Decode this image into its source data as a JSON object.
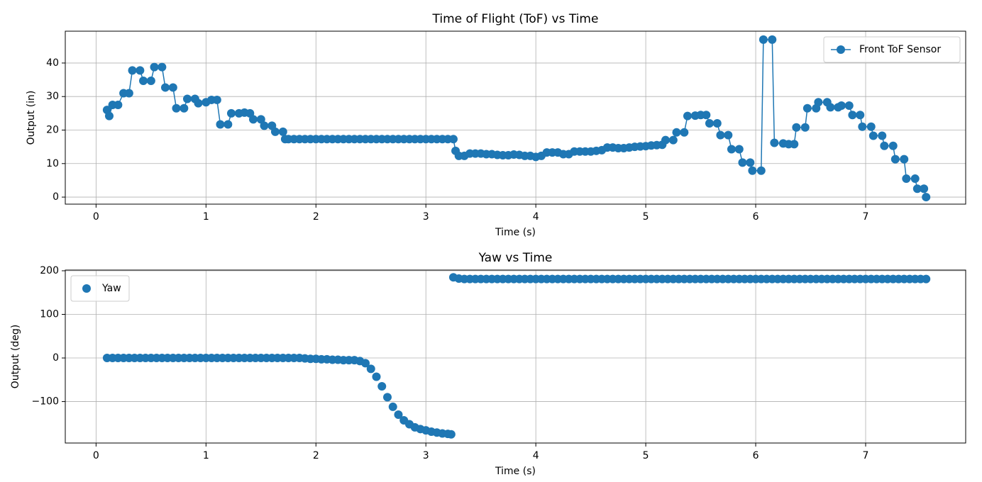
{
  "chart_data": [
    {
      "type": "line",
      "title": "Time of Flight (ToF) vs Time",
      "xlabel": "Time (s)",
      "ylabel": "Output (in)",
      "x": [
        0.1,
        0.12,
        0.15,
        0.2,
        0.25,
        0.3,
        0.33,
        0.4,
        0.43,
        0.5,
        0.53,
        0.6,
        0.63,
        0.7,
        0.73,
        0.8,
        0.83,
        0.9,
        0.93,
        1.0,
        1.05,
        1.1,
        1.13,
        1.2,
        1.23,
        1.3,
        1.35,
        1.4,
        1.43,
        1.5,
        1.53,
        1.6,
        1.63,
        1.7,
        1.72,
        1.75,
        1.8,
        1.85,
        1.9,
        1.95,
        2.0,
        2.05,
        2.1,
        2.15,
        2.2,
        2.25,
        2.3,
        2.35,
        2.4,
        2.45,
        2.5,
        2.55,
        2.6,
        2.65,
        2.7,
        2.75,
        2.8,
        2.85,
        2.9,
        2.95,
        3.0,
        3.05,
        3.1,
        3.15,
        3.2,
        3.25,
        3.27,
        3.3,
        3.35,
        3.4,
        3.45,
        3.5,
        3.55,
        3.6,
        3.65,
        3.7,
        3.75,
        3.8,
        3.85,
        3.9,
        3.95,
        4.0,
        4.05,
        4.1,
        4.15,
        4.2,
        4.25,
        4.3,
        4.35,
        4.4,
        4.45,
        4.5,
        4.55,
        4.6,
        4.65,
        4.7,
        4.75,
        4.8,
        4.85,
        4.9,
        4.95,
        5.0,
        5.05,
        5.1,
        5.15,
        5.18,
        5.25,
        5.28,
        5.35,
        5.38,
        5.45,
        5.5,
        5.55,
        5.58,
        5.65,
        5.68,
        5.75,
        5.78,
        5.85,
        5.88,
        5.95,
        5.97,
        6.05,
        6.07,
        6.15,
        6.17,
        6.25,
        6.3,
        6.35,
        6.37,
        6.45,
        6.47,
        6.55,
        6.57,
        6.65,
        6.68,
        6.75,
        6.78,
        6.85,
        6.88,
        6.95,
        6.97,
        7.05,
        7.07,
        7.15,
        7.17,
        7.25,
        7.27,
        7.35,
        7.37,
        7.45,
        7.47,
        7.53,
        7.55
      ],
      "series": [
        {
          "name": "Front ToF Sensor",
          "color": "#1f77b4",
          "values": [
            26,
            24.2,
            27.5,
            27.5,
            31,
            31,
            37.8,
            37.8,
            34.7,
            34.7,
            38.8,
            38.8,
            32.7,
            32.7,
            26.5,
            26.5,
            29.3,
            29.3,
            28,
            28.3,
            29,
            29,
            21.7,
            21.7,
            25,
            25,
            25.2,
            25,
            23.2,
            23.2,
            21.3,
            21.3,
            19.5,
            19.5,
            17.3,
            17.3,
            17.3,
            17.3,
            17.3,
            17.3,
            17.3,
            17.3,
            17.3,
            17.3,
            17.3,
            17.3,
            17.3,
            17.3,
            17.3,
            17.3,
            17.3,
            17.3,
            17.3,
            17.3,
            17.3,
            17.3,
            17.3,
            17.3,
            17.3,
            17.3,
            17.3,
            17.3,
            17.3,
            17.3,
            17.3,
            17.3,
            13.8,
            12.3,
            12.3,
            13,
            13,
            13,
            12.8,
            12.8,
            12.6,
            12.5,
            12.5,
            12.7,
            12.6,
            12.3,
            12.3,
            12,
            12.3,
            13.3,
            13.3,
            13.3,
            12.8,
            12.8,
            13.6,
            13.6,
            13.6,
            13.6,
            13.8,
            14,
            14.8,
            14.8,
            14.6,
            14.6,
            14.8,
            15,
            15.1,
            15.2,
            15.4,
            15.5,
            15.6,
            17,
            17,
            19.3,
            19.3,
            24.2,
            24.3,
            24.5,
            24.5,
            22,
            22,
            18.5,
            18.5,
            14.3,
            14.3,
            10.3,
            10.3,
            7.9,
            7.9,
            47,
            47,
            16.2,
            16,
            15.8,
            15.8,
            20.8,
            20.8,
            26.5,
            26.5,
            28.3,
            28.3,
            26.8,
            26.8,
            27.3,
            27.3,
            24.5,
            24.5,
            21,
            21,
            18.3,
            18.3,
            15.3,
            15.3,
            11.3,
            11.3,
            5.5,
            5.5,
            2.5,
            2.5,
            0
          ]
        }
      ],
      "xlim": [
        -0.28,
        7.91
      ],
      "xticks": [
        0,
        1,
        2,
        3,
        4,
        5,
        6,
        7
      ],
      "ylim": [
        -2.1,
        49.5
      ],
      "yticks": [
        0,
        10,
        20,
        30,
        40
      ],
      "grid": true,
      "legend": "upper right"
    },
    {
      "type": "scatter",
      "title": "Yaw vs Time",
      "xlabel": "Time (s)",
      "ylabel": "Output (deg)",
      "x": [
        0.1,
        0.15,
        0.2,
        0.25,
        0.3,
        0.35,
        0.4,
        0.45,
        0.5,
        0.55,
        0.6,
        0.65,
        0.7,
        0.75,
        0.8,
        0.85,
        0.9,
        0.95,
        1.0,
        1.05,
        1.1,
        1.15,
        1.2,
        1.25,
        1.3,
        1.35,
        1.4,
        1.45,
        1.5,
        1.55,
        1.6,
        1.65,
        1.7,
        1.75,
        1.8,
        1.85,
        1.9,
        1.95,
        2.0,
        2.05,
        2.1,
        2.15,
        2.2,
        2.25,
        2.3,
        2.35,
        2.4,
        2.45,
        2.5,
        2.55,
        2.6,
        2.65,
        2.7,
        2.75,
        2.8,
        2.85,
        2.9,
        2.95,
        3.0,
        3.05,
        3.1,
        3.15,
        3.2,
        3.23,
        3.25,
        3.3,
        3.35,
        3.4,
        3.45,
        3.5,
        3.55,
        3.6,
        3.65,
        3.7,
        3.75,
        3.8,
        3.85,
        3.9,
        3.95,
        4.0,
        4.05,
        4.1,
        4.15,
        4.2,
        4.25,
        4.3,
        4.35,
        4.4,
        4.45,
        4.5,
        4.55,
        4.6,
        4.65,
        4.7,
        4.75,
        4.8,
        4.85,
        4.9,
        4.95,
        5.0,
        5.05,
        5.1,
        5.15,
        5.2,
        5.25,
        5.3,
        5.35,
        5.4,
        5.45,
        5.5,
        5.55,
        5.6,
        5.65,
        5.7,
        5.75,
        5.8,
        5.85,
        5.9,
        5.95,
        6.0,
        6.05,
        6.1,
        6.15,
        6.2,
        6.25,
        6.3,
        6.35,
        6.4,
        6.45,
        6.5,
        6.55,
        6.6,
        6.65,
        6.7,
        6.75,
        6.8,
        6.85,
        6.9,
        6.95,
        7.0,
        7.05,
        7.1,
        7.15,
        7.2,
        7.25,
        7.3,
        7.35,
        7.4,
        7.45,
        7.5,
        7.55
      ],
      "series": [
        {
          "name": "Yaw",
          "color": "#1f77b4",
          "values": [
            0,
            0,
            0,
            0,
            0,
            0,
            0,
            0,
            0,
            0,
            0,
            0,
            0,
            0,
            0,
            0,
            0,
            0,
            0,
            0,
            0,
            0,
            0,
            0,
            0,
            0,
            0,
            0,
            0,
            0,
            0,
            0,
            0,
            0,
            0,
            0,
            -1,
            -2,
            -2,
            -3,
            -3,
            -4,
            -4,
            -5,
            -5,
            -5,
            -7,
            -12,
            -25,
            -43,
            -65,
            -90,
            -112,
            -130,
            -143,
            -152,
            -159,
            -163,
            -166,
            -169,
            -171,
            -173,
            -174,
            -175,
            185,
            182,
            181,
            181,
            181,
            181,
            181,
            181,
            181,
            181,
            181,
            181,
            181,
            181,
            181,
            181,
            181,
            181,
            181,
            181,
            181,
            181,
            181,
            181,
            181,
            181,
            181,
            181,
            181,
            181,
            181,
            181,
            181,
            181,
            181,
            181,
            181,
            181,
            181,
            181,
            181,
            181,
            181,
            181,
            181,
            181,
            181,
            181,
            181,
            181,
            181,
            181,
            181,
            181,
            181,
            181,
            181,
            181,
            181,
            181,
            181,
            181,
            181,
            181,
            181,
            181,
            181,
            181,
            181,
            181,
            181,
            181,
            181,
            181,
            181,
            181,
            181,
            181,
            181,
            181,
            181,
            181,
            181,
            181,
            181,
            181,
            181
          ]
        }
      ],
      "xlim": [
        -0.28,
        7.91
      ],
      "xticks": [
        0,
        1,
        2,
        3,
        4,
        5,
        6,
        7
      ],
      "ylim": [
        -195,
        201.6
      ],
      "yticks": [
        {
          "value": -100,
          "label": "−100"
        },
        0,
        100,
        200
      ],
      "grid": true,
      "legend": "upper left"
    }
  ]
}
